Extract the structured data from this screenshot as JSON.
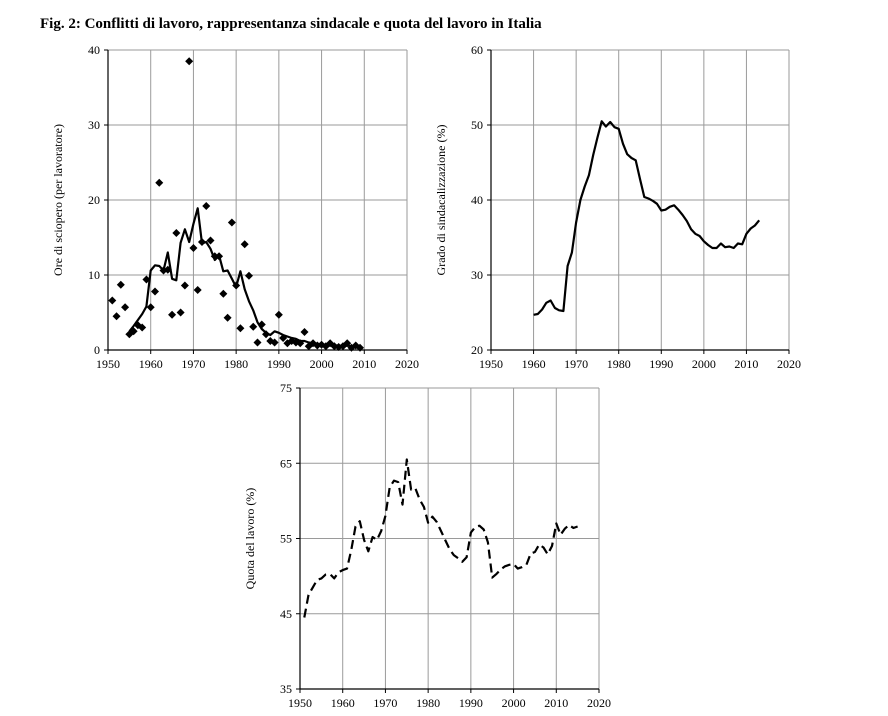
{
  "figure_title": "Fig. 2: Conflitti di lavoro, rappresentanza sindacale e quota del lavoro in Italia",
  "chart_data": [
    {
      "id": "strikes",
      "type": "scatter",
      "ylabel": "Ore di sciopero (per lavoratore)",
      "xlim": [
        1950,
        2020
      ],
      "ylim": [
        0,
        40
      ],
      "xticks": [
        1950,
        1960,
        1970,
        1980,
        1990,
        2000,
        2010,
        2020
      ],
      "yticks": [
        0,
        10,
        20,
        30,
        40
      ],
      "grid": true,
      "series": [
        {
          "kind": "points",
          "marker": "diamond",
          "x": [
            1951,
            1952,
            1953,
            1954,
            1955,
            1956,
            1957,
            1958,
            1959,
            1960,
            1961,
            1962,
            1963,
            1964,
            1965,
            1966,
            1967,
            1968,
            1969,
            1970,
            1971,
            1972,
            1973,
            1974,
            1975,
            1976,
            1977,
            1978,
            1979,
            1980,
            1981,
            1982,
            1983,
            1984,
            1985,
            1986,
            1987,
            1988,
            1989,
            1990,
            1991,
            1992,
            1993,
            1994,
            1995,
            1996,
            1997,
            1998,
            1999,
            2000,
            2001,
            2002,
            2003,
            2004,
            2005,
            2006,
            2007,
            2008,
            2009
          ],
          "y": [
            6.6,
            4.5,
            8.7,
            5.7,
            2.1,
            2.5,
            3.3,
            3.0,
            9.4,
            5.7,
            7.8,
            22.3,
            10.6,
            10.7,
            4.7,
            15.6,
            5.0,
            8.6,
            38.5,
            13.6,
            8.0,
            14.4,
            19.2,
            14.6,
            12.5,
            12.5,
            7.5,
            4.3,
            17.0,
            8.6,
            2.9,
            14.1,
            9.9,
            3.1,
            1.0,
            3.4,
            2.1,
            1.2,
            1.0,
            4.7,
            1.6,
            0.9,
            1.2,
            1.0,
            0.9,
            2.4,
            0.5,
            0.9,
            0.6,
            0.7,
            0.5,
            0.9,
            0.5,
            0.4,
            0.5,
            0.9,
            0.3,
            0.6,
            0.3
          ]
        },
        {
          "kind": "line",
          "x": [
            1955,
            1956,
            1957,
            1958,
            1959,
            1960,
            1961,
            1962,
            1963,
            1964,
            1965,
            1966,
            1967,
            1968,
            1969,
            1970,
            1971,
            1972,
            1973,
            1974,
            1975,
            1976,
            1977,
            1978,
            1979,
            1980,
            1981,
            1982,
            1983,
            1984,
            1985,
            1986,
            1987,
            1988,
            1989,
            1990,
            1991,
            1992,
            1993,
            1994,
            1995,
            1996,
            1997,
            1998,
            1999,
            2000,
            2001,
            2002,
            2003,
            2004,
            2005,
            2006,
            2007,
            2008,
            2009
          ],
          "y": [
            2.5,
            3.2,
            4.0,
            4.8,
            5.8,
            10.6,
            11.3,
            11.2,
            10.6,
            13.0,
            9.5,
            9.3,
            14.3,
            16.1,
            14.4,
            16.8,
            18.9,
            14.2,
            14.4,
            13.5,
            12.0,
            12.6,
            10.5,
            10.6,
            9.5,
            8.4,
            10.5,
            8.1,
            6.5,
            5.3,
            3.7,
            2.8,
            2.3,
            2.0,
            2.5,
            2.3,
            2.0,
            1.8,
            1.6,
            1.5,
            1.2,
            1.2,
            1.0,
            0.9,
            0.8,
            0.8,
            0.7,
            0.7,
            0.6,
            0.6,
            0.5,
            0.6,
            0.5,
            0.4,
            0.3
          ],
          "dash": "solid"
        }
      ]
    },
    {
      "id": "union",
      "type": "line",
      "ylabel": "Grado di sindacalizzazione (%)",
      "xlim": [
        1950,
        2020
      ],
      "ylim": [
        20,
        60
      ],
      "xticks": [
        1950,
        1960,
        1970,
        1980,
        1990,
        2000,
        2010,
        2020
      ],
      "yticks": [
        20,
        30,
        40,
        50,
        60
      ],
      "grid": true,
      "series": [
        {
          "kind": "line",
          "x": [
            1960,
            1961,
            1962,
            1963,
            1964,
            1965,
            1966,
            1967,
            1968,
            1969,
            1970,
            1971,
            1972,
            1973,
            1974,
            1975,
            1976,
            1977,
            1978,
            1979,
            1980,
            1981,
            1982,
            1983,
            1984,
            1985,
            1986,
            1987,
            1988,
            1989,
            1990,
            1991,
            1992,
            1993,
            1994,
            1995,
            1996,
            1997,
            1998,
            1999,
            2000,
            2001,
            2002,
            2003,
            2004,
            2005,
            2006,
            2007,
            2008,
            2009,
            2010,
            2011,
            2012,
            2013
          ],
          "y": [
            24.7,
            24.8,
            25.4,
            26.3,
            26.6,
            25.6,
            25.3,
            25.2,
            31.2,
            33.0,
            37.0,
            40.0,
            41.8,
            43.3,
            46.0,
            48.3,
            50.5,
            49.8,
            50.4,
            49.7,
            49.5,
            47.5,
            46.1,
            45.6,
            45.3,
            42.8,
            40.4,
            40.2,
            39.9,
            39.5,
            38.6,
            38.7,
            39.1,
            39.3,
            38.7,
            38.0,
            37.2,
            36.1,
            35.5,
            35.2,
            34.5,
            34.0,
            33.6,
            33.6,
            34.2,
            33.7,
            33.8,
            33.6,
            34.2,
            34.1,
            35.5,
            36.2,
            36.6,
            37.3
          ],
          "dash": "solid"
        }
      ]
    },
    {
      "id": "laborshare",
      "type": "line",
      "ylabel": "Quota del lavoro (%)",
      "xlim": [
        1950,
        2020
      ],
      "ylim": [
        35,
        75
      ],
      "xticks": [
        1950,
        1960,
        1970,
        1980,
        1990,
        2000,
        2010,
        2020
      ],
      "yticks": [
        35,
        45,
        55,
        65,
        75
      ],
      "grid": true,
      "series": [
        {
          "kind": "line",
          "x": [
            1951,
            1952,
            1953,
            1954,
            1955,
            1956,
            1957,
            1958,
            1959,
            1960,
            1961,
            1962,
            1963,
            1964,
            1965,
            1966,
            1967,
            1968,
            1969,
            1970,
            1971,
            1972,
            1973,
            1974,
            1975,
            1976,
            1977,
            1978,
            1979,
            1980,
            1981,
            1982,
            1983,
            1984,
            1985,
            1986,
            1987,
            1988,
            1989,
            1990,
            1991,
            1992,
            1993,
            1994,
            1995,
            1996,
            1997,
            1998,
            1999,
            2000,
            2001,
            2002,
            2003,
            2004,
            2005,
            2006,
            2007,
            2008,
            2009,
            2010,
            2011,
            2012,
            2013,
            2014,
            2015
          ],
          "y": [
            44.5,
            47.5,
            48.5,
            49.5,
            49.7,
            50.2,
            50.3,
            49.7,
            50.5,
            50.8,
            51.0,
            53.5,
            56.6,
            57.3,
            54.8,
            53.3,
            55.2,
            54.8,
            56.0,
            58.0,
            61.8,
            62.7,
            62.5,
            59.5,
            65.5,
            61.5,
            61.7,
            60.2,
            59.2,
            57.1,
            57.9,
            57.2,
            56.0,
            54.8,
            53.6,
            52.8,
            52.4,
            51.9,
            52.5,
            55.8,
            56.5,
            56.7,
            56.2,
            54.5,
            49.8,
            50.3,
            50.9,
            51.3,
            51.5,
            51.6,
            51.0,
            51.2,
            51.5,
            53.0,
            53.2,
            54.2,
            53.8,
            52.9,
            54.0,
            57.0,
            55.5,
            56.3,
            56.8,
            56.4,
            56.6
          ],
          "dash": "dashed"
        }
      ]
    }
  ]
}
